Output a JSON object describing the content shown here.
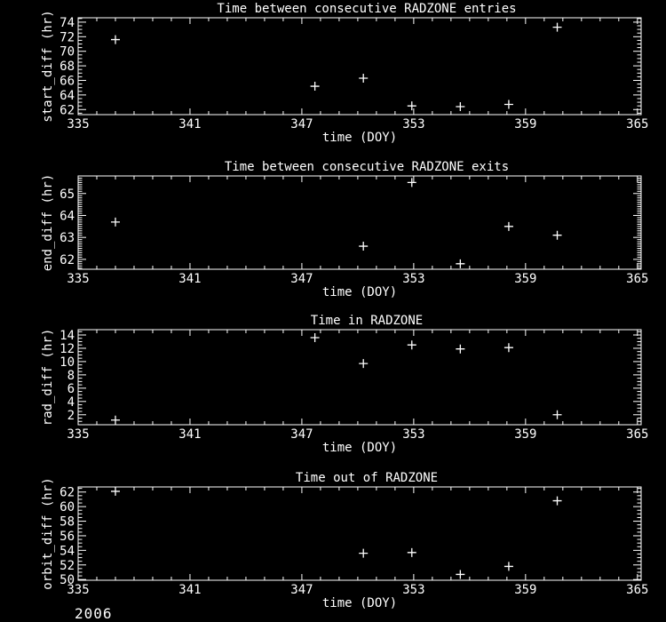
{
  "page": {
    "background": "#000000",
    "foreground": "#ffffff",
    "footer_year": "2006"
  },
  "chart_data": [
    {
      "type": "scatter",
      "title": "Time between consecutive RADZONE entries",
      "xlabel": "time (DOY)",
      "ylabel": "start_diff (hr)",
      "xlim": [
        335,
        365.2
      ],
      "ylim": [
        61.3,
        74.6
      ],
      "xticks": [
        335,
        341,
        347,
        353,
        359,
        365
      ],
      "x_minor_step": 1,
      "yticks": [
        62,
        64,
        66,
        68,
        70,
        72,
        74
      ],
      "y_minor_step": 0.5,
      "marker": "plus",
      "grid": false,
      "legend": null,
      "x": [
        337.0,
        347.7,
        350.3,
        352.9,
        355.5,
        358.1,
        360.7
      ],
      "y": [
        71.6,
        65.2,
        66.3,
        62.5,
        62.4,
        62.7,
        73.3
      ]
    },
    {
      "type": "scatter",
      "title": "Time between consecutive RADZONE exits",
      "xlabel": "time (DOY)",
      "ylabel": "end_diff (hr)",
      "xlim": [
        335,
        365.2
      ],
      "ylim": [
        61.55,
        65.8
      ],
      "xticks": [
        335,
        341,
        347,
        353,
        359,
        365
      ],
      "x_minor_step": 1,
      "yticks": [
        62,
        63,
        64,
        65
      ],
      "y_minor_step": 0.1,
      "marker": "plus",
      "grid": false,
      "legend": null,
      "x": [
        337.0,
        350.3,
        352.9,
        355.5,
        358.1,
        360.7
      ],
      "y": [
        63.7,
        62.6,
        65.5,
        61.8,
        63.5,
        63.1
      ]
    },
    {
      "type": "scatter",
      "title": "Time in RADZONE",
      "xlabel": "time (DOY)",
      "ylabel": "rad_diff (hr)",
      "xlim": [
        335,
        365.2
      ],
      "ylim": [
        0.5,
        14.8
      ],
      "xticks": [
        335,
        341,
        347,
        353,
        359,
        365
      ],
      "x_minor_step": 1,
      "yticks": [
        2,
        4,
        6,
        8,
        10,
        12,
        14
      ],
      "y_minor_step": 0.5,
      "marker": "plus",
      "grid": false,
      "legend": null,
      "x": [
        337.0,
        347.7,
        350.3,
        352.9,
        355.5,
        358.1,
        360.7
      ],
      "y": [
        1.2,
        13.6,
        9.7,
        12.5,
        11.9,
        12.1,
        2.0
      ]
    },
    {
      "type": "scatter",
      "title": "Time out of RADZONE",
      "xlabel": "time (DOY)",
      "ylabel": "orbit_diff (hr)",
      "xlim": [
        335,
        365.2
      ],
      "ylim": [
        49.9,
        62.7
      ],
      "xticks": [
        335,
        341,
        347,
        353,
        359,
        365
      ],
      "x_minor_step": 1,
      "yticks": [
        50,
        52,
        54,
        56,
        58,
        60,
        62
      ],
      "y_minor_step": 0.5,
      "marker": "plus",
      "grid": false,
      "legend": null,
      "x": [
        337.0,
        350.3,
        352.9,
        355.5,
        358.1,
        360.7
      ],
      "y": [
        62.1,
        53.6,
        53.7,
        50.7,
        51.8,
        60.8
      ]
    }
  ]
}
